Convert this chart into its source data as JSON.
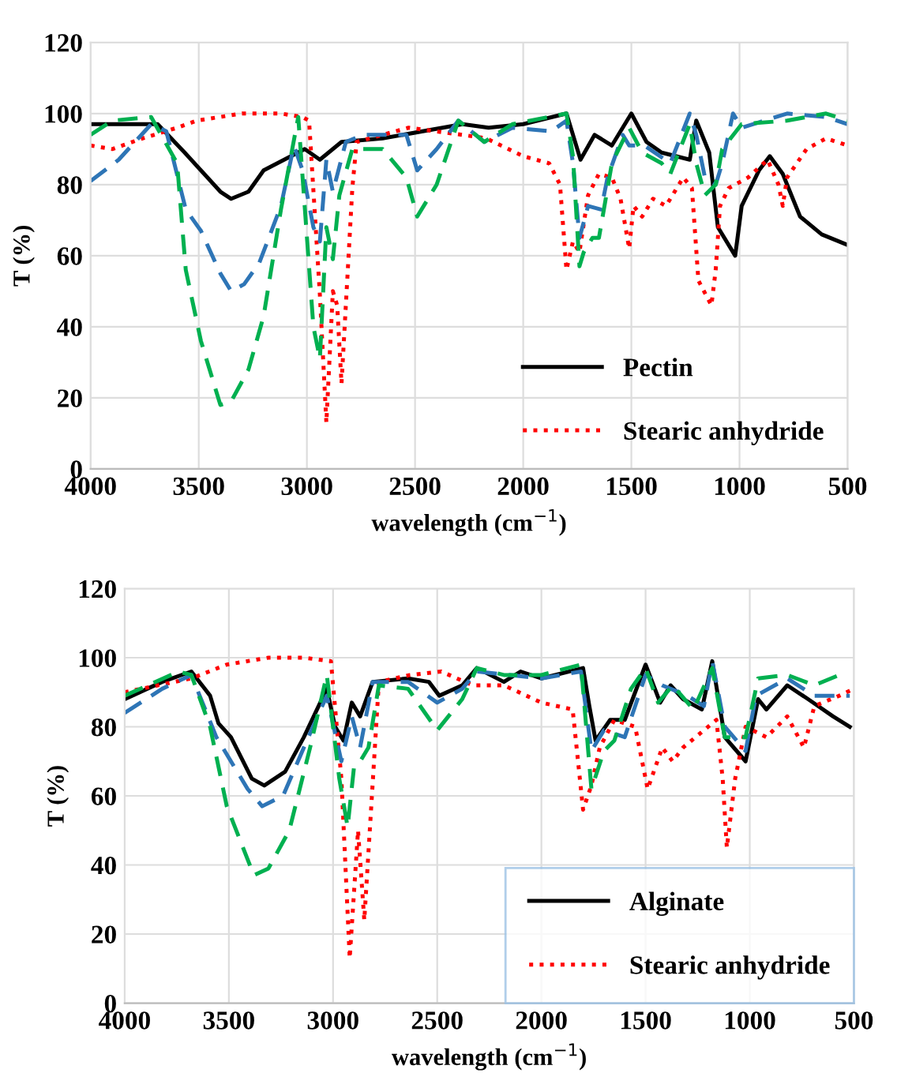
{
  "chart_data": [
    {
      "type": "line",
      "xlabel": "wavelength (cm$^{−1}$)",
      "ylabel": "T (%)",
      "xlim": [
        4000,
        500
      ],
      "xticks": [
        4000,
        3500,
        3000,
        2500,
        2000,
        1500,
        1000,
        500
      ],
      "ylim": [
        0,
        120
      ],
      "yticks": [
        0,
        20,
        40,
        60,
        80,
        100,
        120
      ],
      "grid": true,
      "legend": "bottom right",
      "series": [
        {
          "name": "Pectin",
          "color": "#000000",
          "line_style": "solid",
          "x": [
            4000,
            3690,
            3565,
            3400,
            3350,
            3270,
            3200,
            3010,
            2940,
            2840,
            2650,
            2280,
            2160,
            2000,
            1800,
            1735,
            1670,
            1590,
            1500,
            1430,
            1360,
            1230,
            1200,
            1140,
            1100,
            1020,
            990,
            910,
            860,
            800,
            720,
            620,
            500
          ],
          "values": [
            97,
            97,
            89,
            78,
            76,
            78,
            84,
            90,
            87,
            92,
            93,
            97,
            96,
            97,
            100,
            87,
            94,
            91,
            100,
            92,
            89,
            87,
            98,
            89,
            68,
            60,
            74,
            84,
            88,
            83,
            71,
            66,
            63
          ]
        },
        {
          "name": "Stearic anhydride",
          "color": "#ff0000",
          "line_style": "dotted",
          "x": [
            4000,
            3900,
            3760,
            3600,
            3510,
            3300,
            3120,
            3020,
            2990,
            2940,
            2910,
            2880,
            2860,
            2840,
            2790,
            2770,
            2530,
            2280,
            2170,
            2000,
            1880,
            1830,
            1800,
            1770,
            1740,
            1700,
            1650,
            1590,
            1550,
            1510,
            1490,
            1450,
            1400,
            1340,
            1260,
            1220,
            1190,
            1130,
            1110,
            1090,
            1050,
            960,
            870,
            820,
            800,
            780,
            690,
            600,
            500
          ],
          "values": [
            91,
            90,
            93,
            96,
            98,
            100,
            100,
            99,
            98,
            49,
            13,
            50,
            46,
            24,
            79,
            92,
            96,
            94,
            93,
            88,
            86,
            80,
            56,
            64,
            61,
            77,
            83,
            82,
            76,
            62,
            74,
            71,
            76,
            74,
            82,
            79,
            53,
            46,
            56,
            74,
            79,
            82,
            87,
            80,
            74,
            82,
            90,
            93,
            91
          ]
        },
        {
          "color": "#2e75b6",
          "line_style": "dashed",
          "x": [
            4000,
            3870,
            3720,
            3650,
            3560,
            3490,
            3400,
            3350,
            3290,
            3220,
            3120,
            3060,
            3020,
            2970,
            2940,
            2910,
            2880,
            2820,
            2740,
            2540,
            2490,
            2400,
            2300,
            2180,
            2050,
            1870,
            1800,
            1770,
            1740,
            1700,
            1640,
            1610,
            1540,
            1510,
            1440,
            1320,
            1230,
            1200,
            1160,
            1110,
            1080,
            1030,
            990,
            780,
            600,
            500
          ],
          "values": [
            81,
            87,
            97,
            95,
            73,
            67,
            55,
            50,
            52,
            58,
            74,
            91,
            84,
            68,
            64,
            87,
            78,
            92,
            94,
            94,
            84,
            90,
            98,
            92,
            96,
            95,
            98,
            86,
            65,
            74,
            73,
            82,
            94,
            91,
            91,
            86,
            100,
            94,
            82,
            80,
            86,
            100,
            96,
            100,
            99,
            97
          ]
        },
        {
          "color": "#00b050",
          "line_style": "dashed",
          "x": [
            4000,
            3900,
            3720,
            3600,
            3560,
            3490,
            3400,
            3350,
            3270,
            3200,
            3120,
            3040,
            2970,
            2940,
            2910,
            2880,
            2850,
            2790,
            2650,
            2540,
            2490,
            2400,
            2300,
            2180,
            2050,
            1800,
            1770,
            1740,
            1720,
            1680,
            1650,
            1590,
            1510,
            1450,
            1360,
            1320,
            1230,
            1200,
            1160,
            1110,
            1080,
            990,
            780,
            600,
            500
          ],
          "values": [
            94,
            98,
            99,
            86,
            56,
            36,
            18,
            19,
            28,
            43,
            73,
            99,
            40,
            31,
            68,
            59,
            77,
            90,
            90,
            82,
            71,
            80,
            98,
            92,
            97,
            100,
            88,
            57,
            61,
            65,
            65,
            86,
            96,
            89,
            86,
            83,
            97,
            86,
            77,
            80,
            90,
            97,
            98,
            100,
            98
          ]
        }
      ]
    },
    {
      "type": "line",
      "xlabel": "wavelength (cm$^{−1}$)",
      "ylabel": "T (%)",
      "xlim": [
        4000,
        500
      ],
      "xticks": [
        4000,
        3500,
        3000,
        2500,
        2000,
        1500,
        1000,
        500
      ],
      "ylim": [
        0,
        120
      ],
      "yticks": [
        0,
        20,
        40,
        60,
        80,
        100,
        120
      ],
      "grid": true,
      "legend": "bottom right",
      "series": [
        {
          "name": "Alginate",
          "color": "#000000",
          "line_style": "solid",
          "x": [
            4000,
            3820,
            3680,
            3590,
            3550,
            3490,
            3390,
            3330,
            3230,
            3140,
            3030,
            2990,
            2950,
            2910,
            2870,
            2810,
            2640,
            2540,
            2490,
            2380,
            2310,
            2180,
            2100,
            2000,
            1800,
            1770,
            1740,
            1670,
            1600,
            1500,
            1430,
            1380,
            1320,
            1230,
            1180,
            1120,
            1020,
            960,
            920,
            820,
            720,
            600,
            520
          ],
          "values": [
            88,
            93,
            96,
            89,
            81,
            77,
            65,
            63,
            67,
            77,
            91,
            80,
            76,
            87,
            83,
            93,
            94,
            93,
            89,
            92,
            97,
            93,
            96,
            94,
            97,
            86,
            76,
            82,
            82,
            98,
            87,
            92,
            88,
            85,
            99,
            77,
            70,
            88,
            85,
            92,
            88,
            83,
            80
          ]
        },
        {
          "name": "Stearic anhydride",
          "color": "#ff0000",
          "line_style": "dotted",
          "x": [
            4000,
            3680,
            3510,
            3310,
            3140,
            3010,
            2960,
            2920,
            2880,
            2850,
            2780,
            2630,
            2480,
            2330,
            2180,
            2000,
            1850,
            1800,
            1760,
            1720,
            1650,
            1550,
            1490,
            1420,
            1370,
            1320,
            1220,
            1160,
            1130,
            1110,
            1070,
            1020,
            920,
            820,
            740,
            690,
            570,
            500
          ],
          "values": [
            90,
            94,
            98,
            100,
            100,
            99,
            65,
            13,
            50,
            24,
            93,
            95,
            96,
            92,
            92,
            87,
            85,
            56,
            63,
            74,
            82,
            80,
            62,
            74,
            70,
            74,
            79,
            82,
            65,
            45,
            65,
            80,
            77,
            83,
            74,
            86,
            89,
            91
          ]
        },
        {
          "color": "#2e75b6",
          "line_style": "dashed",
          "x": [
            4000,
            3820,
            3680,
            3560,
            3410,
            3340,
            3240,
            3140,
            3030,
            2960,
            2910,
            2870,
            2810,
            2640,
            2500,
            2380,
            2310,
            2000,
            1810,
            1760,
            1700,
            1600,
            1500,
            1420,
            1300,
            1220,
            1180,
            1120,
            1020,
            970,
            820,
            690,
            520
          ],
          "values": [
            84,
            91,
            95,
            77,
            62,
            57,
            60,
            74,
            89,
            70,
            83,
            74,
            93,
            93,
            87,
            91,
            96,
            94,
            96,
            73,
            79,
            77,
            95,
            92,
            89,
            86,
            99,
            80,
            73,
            89,
            94,
            89,
            89
          ]
        },
        {
          "color": "#00b050",
          "line_style": "dashed",
          "x": [
            4000,
            3740,
            3680,
            3590,
            3510,
            3380,
            3310,
            3210,
            3110,
            3030,
            2970,
            2930,
            2900,
            2870,
            2830,
            2780,
            2640,
            2500,
            2380,
            2310,
            2180,
            2000,
            1810,
            1760,
            1700,
            1650,
            1570,
            1500,
            1440,
            1370,
            1270,
            1180,
            1120,
            1020,
            960,
            820,
            690,
            570
          ],
          "values": [
            89,
            96,
            95,
            80,
            57,
            37,
            39,
            50,
            74,
            95,
            65,
            51,
            68,
            70,
            74,
            92,
            91,
            79,
            88,
            97,
            95,
            95,
            98,
            62,
            73,
            76,
            91,
            97,
            87,
            92,
            85,
            97,
            77,
            77,
            94,
            95,
            92,
            95
          ]
        }
      ]
    }
  ]
}
